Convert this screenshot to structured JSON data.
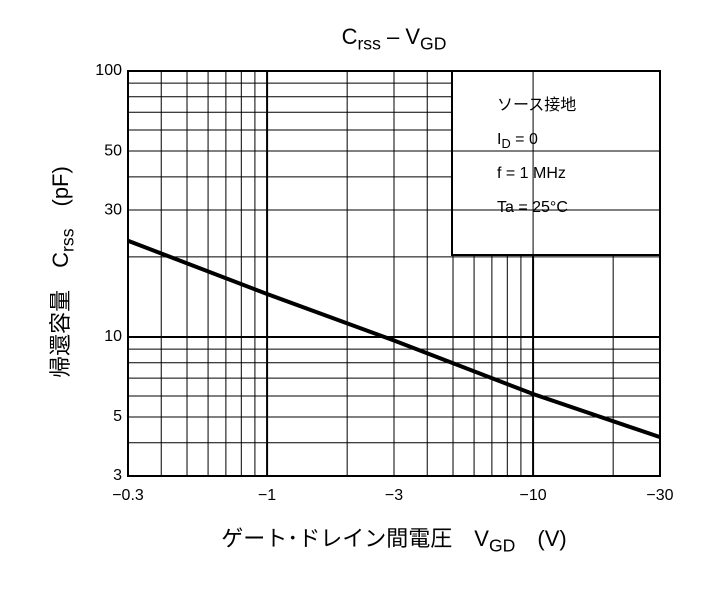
{
  "chart_data": {
    "type": "line",
    "title_parts": [
      "C",
      "rss",
      " – V",
      "GD"
    ],
    "ylabel_parts": [
      "帰還容量　C",
      "rss",
      "　(pF)"
    ],
    "xlabel_parts": [
      "ゲート･ドレイン間電圧　V",
      "GD",
      "　(V)"
    ],
    "annotations": [
      [
        "ソース接地"
      ],
      [
        "I",
        "D",
        " = 0"
      ],
      [
        "f = 1 MHz"
      ],
      [
        "Ta = 25°C"
      ]
    ],
    "x": [
      -0.3,
      -1,
      -3,
      -10,
      -30
    ],
    "series": [
      {
        "color": "#000000",
        "values": [
          23,
          14.5,
          9.7,
          6.1,
          4.2
        ]
      }
    ],
    "xlim": [
      -0.3,
      -30
    ],
    "ylim": [
      3,
      100
    ],
    "xticks": [
      {
        "value": -0.3,
        "label": "−0.3"
      },
      {
        "value": -1,
        "label": "−1"
      },
      {
        "value": -3,
        "label": "−3"
      },
      {
        "value": -10,
        "label": "−10"
      },
      {
        "value": -30,
        "label": "−30"
      }
    ],
    "yticks": [
      3,
      5,
      10,
      30,
      50,
      100
    ],
    "xscale": "log",
    "yscale": "log",
    "grid": true
  }
}
